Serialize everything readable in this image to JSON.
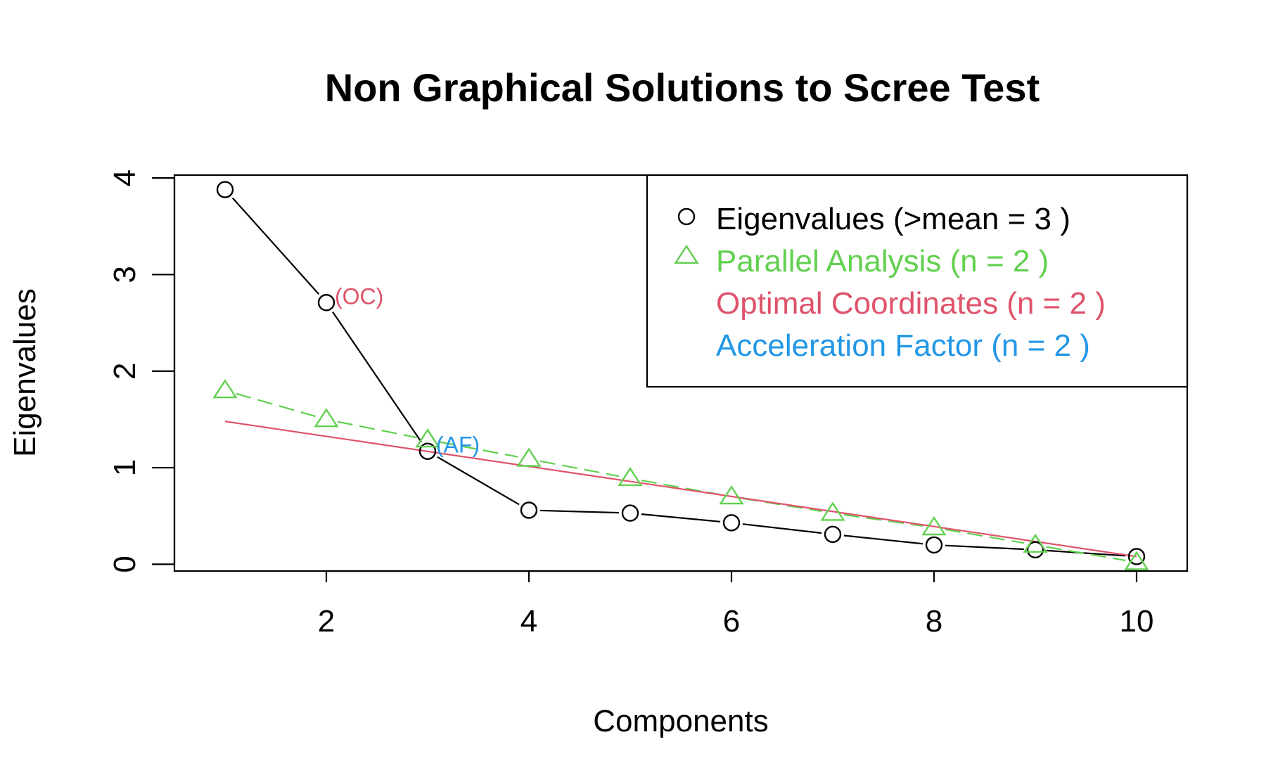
{
  "chart_data": {
    "type": "line",
    "title": "Non Graphical Solutions to Scree Test",
    "xlabel": "Components",
    "ylabel": "Eigenvalues",
    "xlim": [
      0.5,
      10.5
    ],
    "ylim": [
      -0.07,
      4.03
    ],
    "xticks": [
      2,
      4,
      6,
      8,
      10
    ],
    "yticks": [
      0,
      1,
      2,
      3,
      4
    ],
    "grid": false,
    "legend_position": "top-right",
    "x": [
      1,
      2,
      3,
      4,
      5,
      6,
      7,
      8,
      9,
      10
    ],
    "series": [
      {
        "name": "Eigenvalues (>mean  =  3 )",
        "values": [
          3.88,
          2.71,
          1.17,
          0.56,
          0.53,
          0.43,
          0.31,
          0.2,
          0.15,
          0.08
        ],
        "color": "#000000",
        "marker": "circle",
        "line": "solid"
      },
      {
        "name": "Parallel Analysis (n =  2 )",
        "values": [
          1.8,
          1.5,
          1.29,
          1.09,
          0.89,
          0.7,
          0.53,
          0.38,
          0.2,
          0.02
        ],
        "color": "#61D04F",
        "marker": "triangle",
        "line": "dashed"
      },
      {
        "name": "Optimal Coordinates (n =  2 )",
        "color": "#DF536B",
        "marker": "none",
        "line": "solid",
        "fit_from": [
          1,
          1.48
        ],
        "fit_to": [
          10,
          0.08
        ]
      },
      {
        "name": "Acceleration Factor (n =  2 )",
        "color": "#2297E6",
        "marker": "none",
        "line": "none"
      }
    ],
    "annotations": [
      {
        "text": "(OC)",
        "x": 2,
        "y": 2.71,
        "color": "#DF536B"
      },
      {
        "text": "(AF)",
        "x": 3,
        "y": 1.17,
        "color": "#2297E6"
      }
    ]
  }
}
